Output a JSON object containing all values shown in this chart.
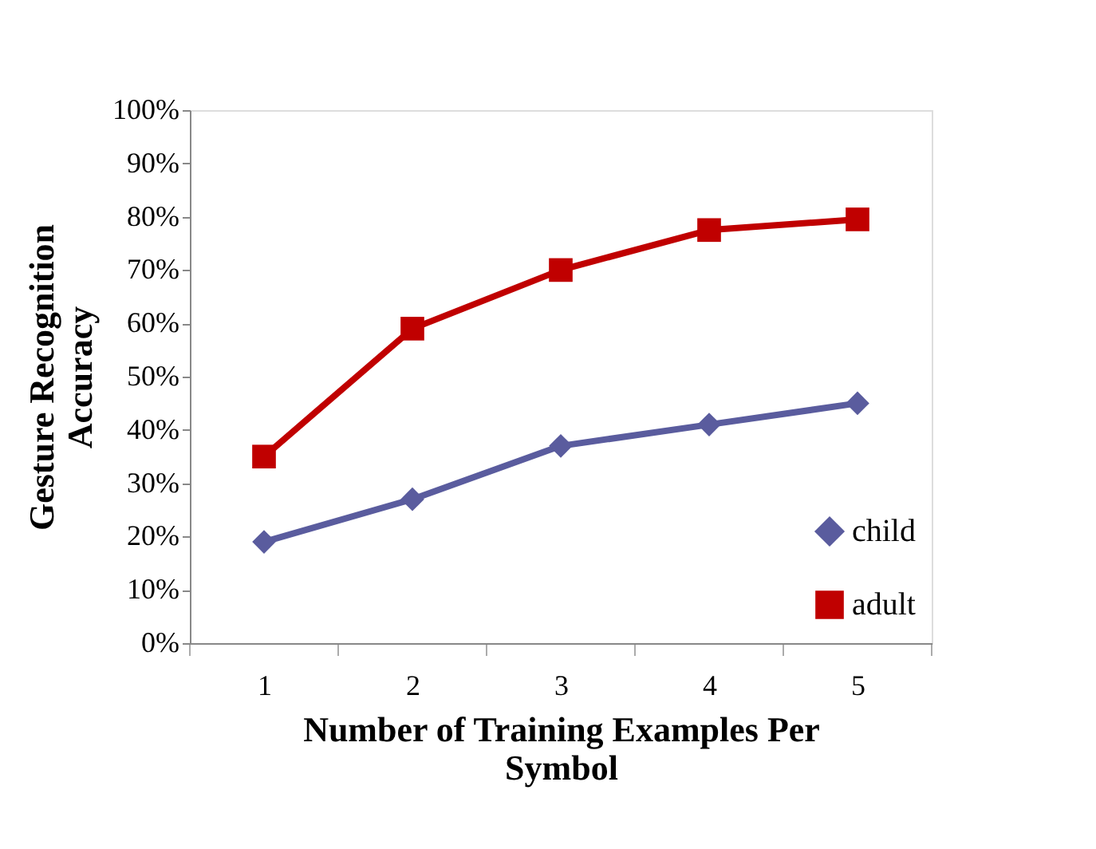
{
  "chart_data": {
    "type": "line",
    "xlabel": "Number of Training Examples Per\nSymbol",
    "ylabel": "Gesture Recognition\nAccuracy",
    "categories": [
      "1",
      "2",
      "3",
      "4",
      "5"
    ],
    "series": [
      {
        "name": "child",
        "color": "#5a5c9e",
        "marker": "diamond",
        "values": [
          19,
          27,
          37,
          41,
          45
        ]
      },
      {
        "name": "adult",
        "color": "#c00000",
        "marker": "square",
        "values": [
          35,
          59,
          70,
          77.5,
          79.5
        ]
      }
    ],
    "ylim": [
      0,
      100
    ],
    "yticks": [
      {
        "value": 0,
        "label": "0%"
      },
      {
        "value": 10,
        "label": "10%"
      },
      {
        "value": 20,
        "label": "20%"
      },
      {
        "value": 30,
        "label": "30%"
      },
      {
        "value": 40,
        "label": "40%"
      },
      {
        "value": 50,
        "label": "50%"
      },
      {
        "value": 60,
        "label": "60%"
      },
      {
        "value": 70,
        "label": "70%"
      },
      {
        "value": 80,
        "label": "80%"
      },
      {
        "value": 90,
        "label": "90%"
      },
      {
        "value": 100,
        "label": "100%"
      }
    ],
    "grid": false,
    "legend": "bottom right",
    "line_style": "solid"
  }
}
